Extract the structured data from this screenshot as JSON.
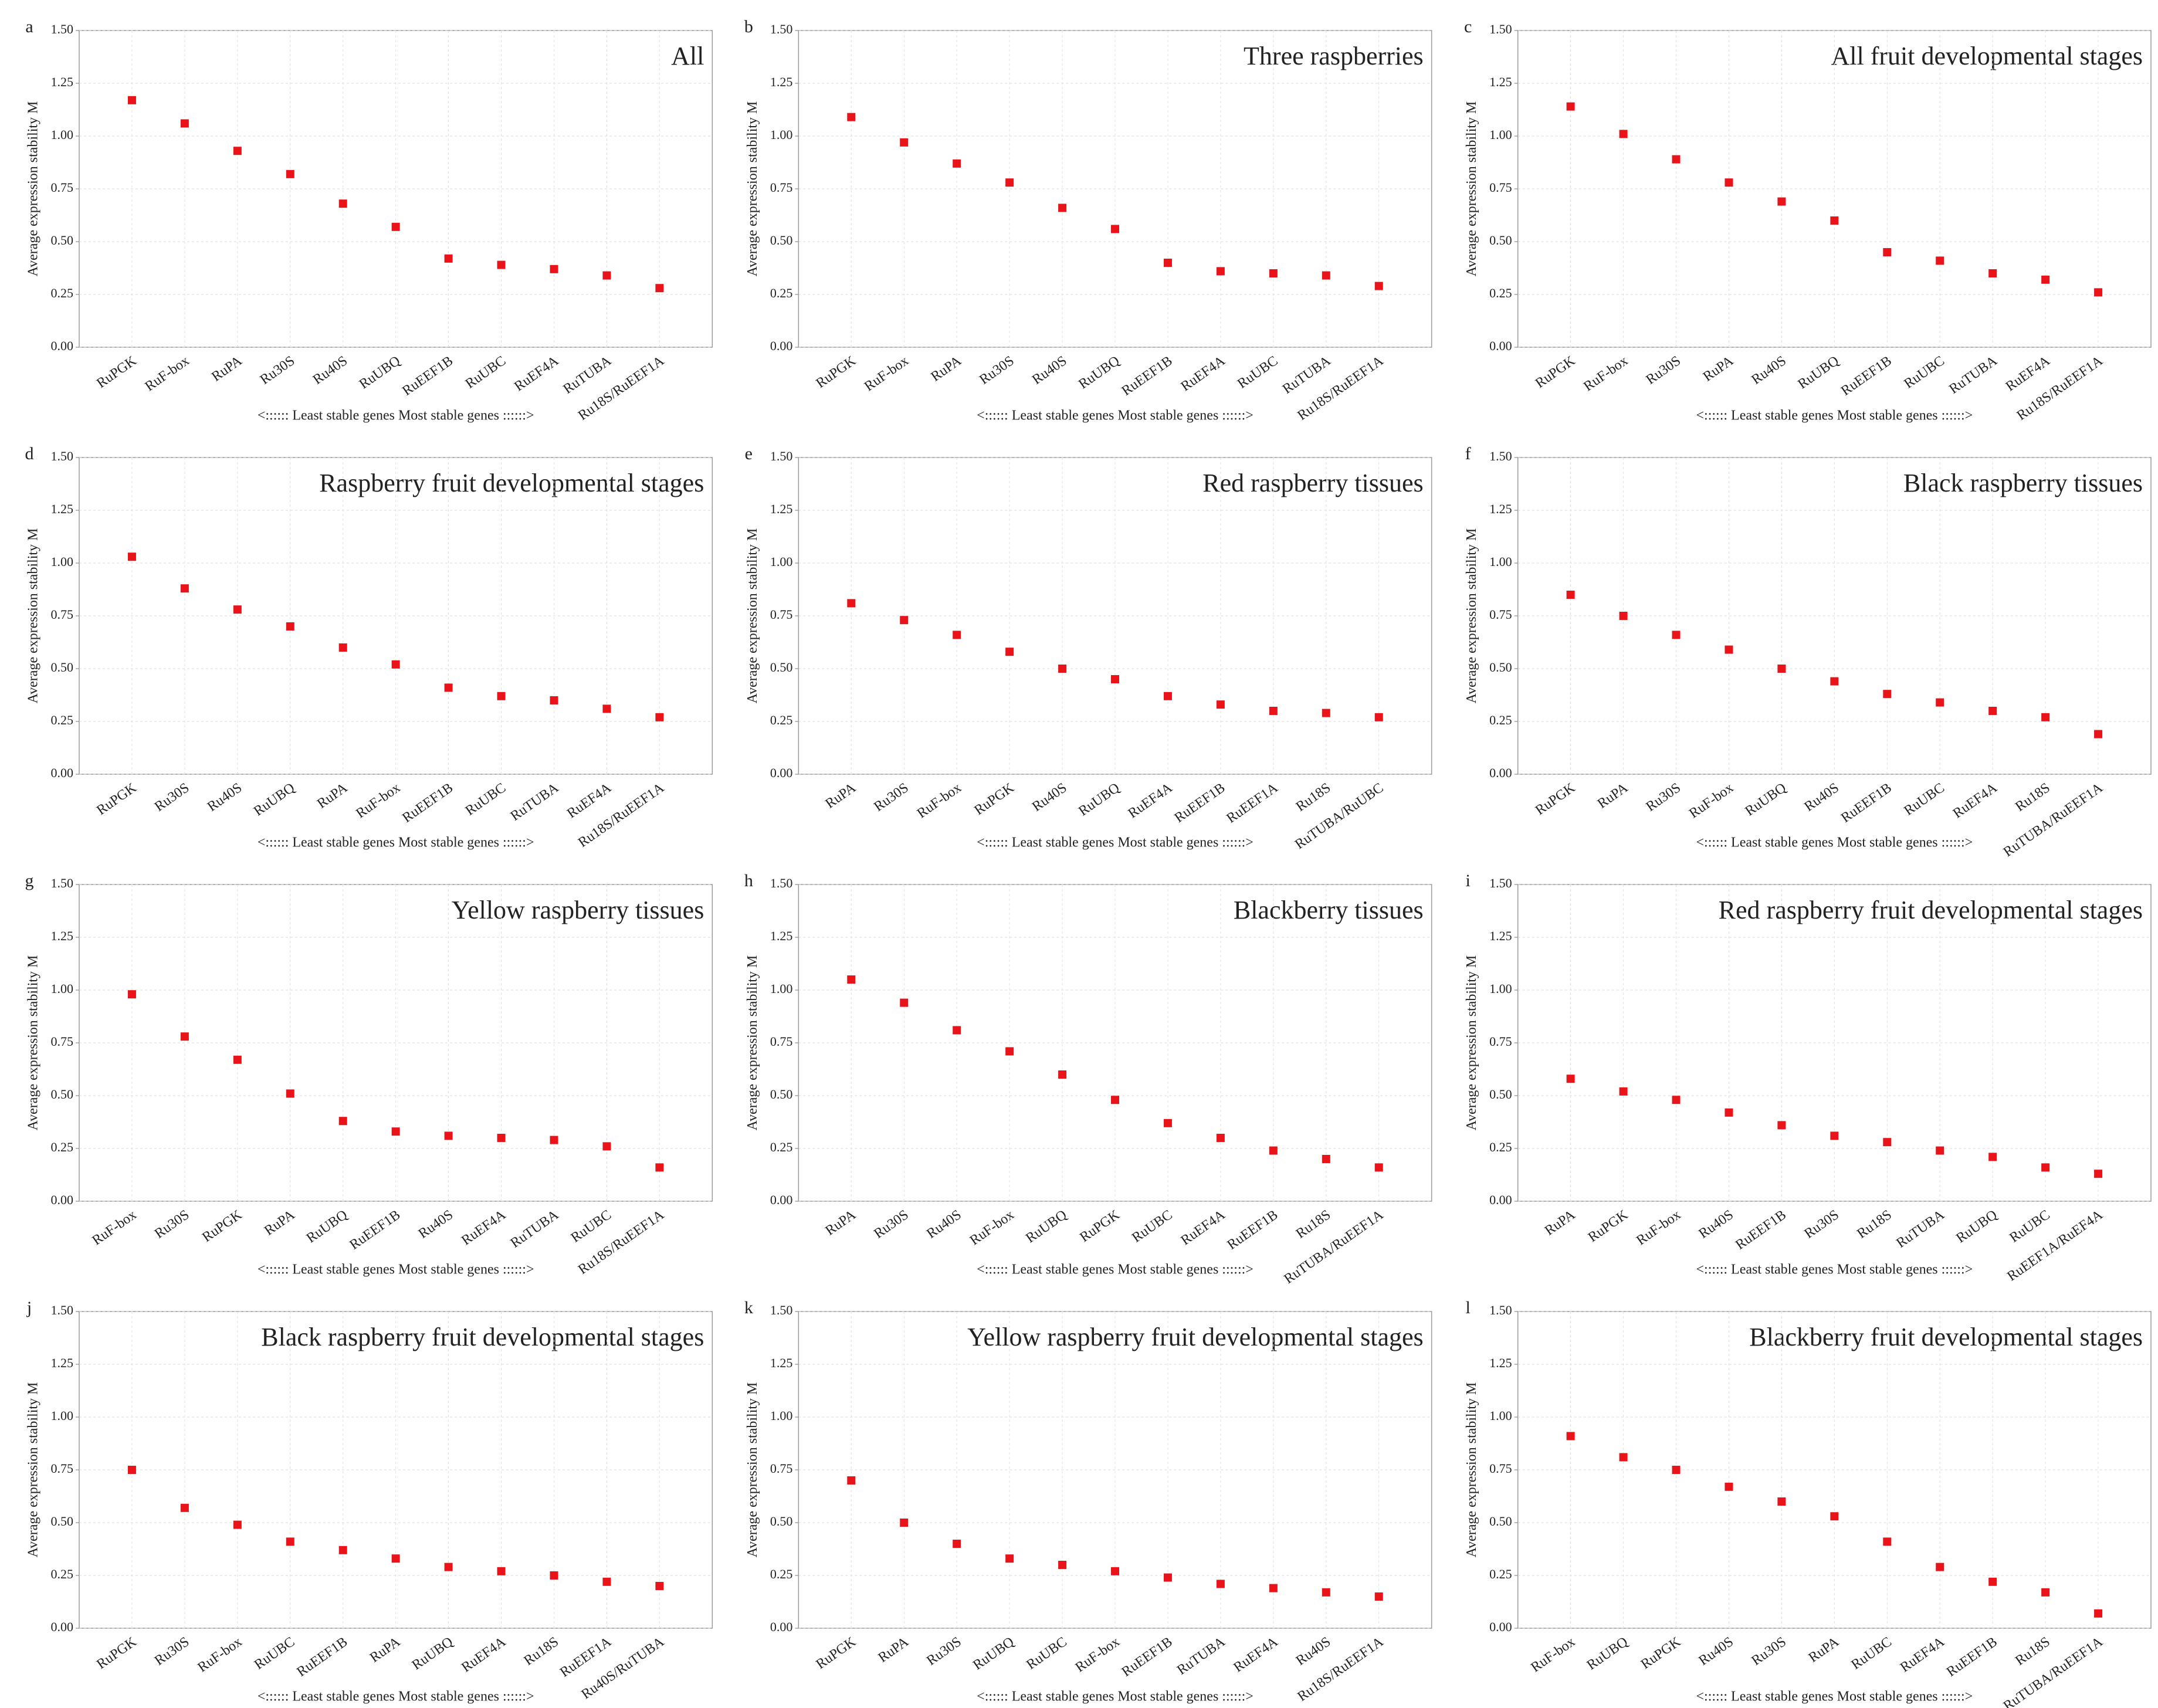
{
  "chart_data": [
    {
      "type": "scatter",
      "panel_label": "a",
      "title": "All",
      "y_label": "Average expression stability M",
      "x_label": "<:::::: Least stable genes  Most stable genes ::::::>",
      "color": "#e8141a",
      "grid": true,
      "categories": [
        "RuPGK",
        "RuF-box",
        "RuPA",
        "Ru30S",
        "Ru40S",
        "RuUBQ",
        "RuEEF1B",
        "RuUBC",
        "RuEF4A",
        "RuTUBA",
        "Ru18S/RuEEF1A"
      ],
      "values": [
        1.17,
        1.06,
        0.93,
        0.82,
        0.68,
        0.57,
        0.42,
        0.39,
        0.37,
        0.34,
        0.28
      ],
      "ylim": [
        0,
        1.5
      ],
      "yticks": [
        {
          "value": 0,
          "label": "0.00"
        },
        {
          "value": 0.25,
          "label": "0.25"
        },
        {
          "value": 0.5,
          "label": "0.50"
        },
        {
          "value": 0.75,
          "label": "0.75"
        },
        {
          "value": 1,
          "label": "1.00"
        },
        {
          "value": 1.25,
          "label": "1.25"
        },
        {
          "value": 1.5,
          "label": "1.50"
        }
      ]
    },
    {
      "type": "scatter",
      "panel_label": "b",
      "title": "Three raspberries",
      "y_label": "Average expression stability M",
      "x_label": "<:::::: Least stable genes  Most stable genes ::::::>",
      "color": "#e8141a",
      "grid": true,
      "categories": [
        "RuPGK",
        "RuF-box",
        "RuPA",
        "Ru30S",
        "Ru40S",
        "RuUBQ",
        "RuEEF1B",
        "RuEF4A",
        "RuUBC",
        "RuTUBA",
        "Ru18S/RuEEF1A"
      ],
      "values": [
        1.09,
        0.97,
        0.87,
        0.78,
        0.66,
        0.56,
        0.4,
        0.36,
        0.35,
        0.34,
        0.29
      ],
      "ylim": [
        0,
        1.5
      ],
      "yticks": [
        {
          "value": 0,
          "label": "0.00"
        },
        {
          "value": 0.25,
          "label": "0.25"
        },
        {
          "value": 0.5,
          "label": "0.50"
        },
        {
          "value": 0.75,
          "label": "0.75"
        },
        {
          "value": 1,
          "label": "1.00"
        },
        {
          "value": 1.25,
          "label": "1.25"
        },
        {
          "value": 1.5,
          "label": "1.50"
        }
      ]
    },
    {
      "type": "scatter",
      "panel_label": "c",
      "title": "All fruit developmental stages",
      "y_label": "Average expression stability M",
      "x_label": "<:::::: Least stable genes  Most stable genes ::::::>",
      "color": "#e8141a",
      "grid": true,
      "categories": [
        "RuPGK",
        "RuF-box",
        "Ru30S",
        "RuPA",
        "Ru40S",
        "RuUBQ",
        "RuEEF1B",
        "RuUBC",
        "RuTUBA",
        "RuEF4A",
        "Ru18S/RuEEF1A"
      ],
      "values": [
        1.14,
        1.01,
        0.89,
        0.78,
        0.69,
        0.6,
        0.45,
        0.41,
        0.35,
        0.32,
        0.26
      ],
      "ylim": [
        0,
        1.5
      ],
      "yticks": [
        {
          "value": 0,
          "label": "0.00"
        },
        {
          "value": 0.25,
          "label": "0.25"
        },
        {
          "value": 0.5,
          "label": "0.50"
        },
        {
          "value": 0.75,
          "label": "0.75"
        },
        {
          "value": 1,
          "label": "1.00"
        },
        {
          "value": 1.25,
          "label": "1.25"
        },
        {
          "value": 1.5,
          "label": "1.50"
        }
      ]
    },
    {
      "type": "scatter",
      "panel_label": "d",
      "title": "Raspberry fruit developmental stages",
      "y_label": "Average expression stability M",
      "x_label": "<:::::: Least stable genes  Most stable genes ::::::>",
      "color": "#e8141a",
      "grid": true,
      "categories": [
        "RuPGK",
        "Ru30S",
        "Ru40S",
        "RuUBQ",
        "RuPA",
        "RuF-box",
        "RuEEF1B",
        "RuUBC",
        "RuTUBA",
        "RuEF4A",
        "Ru18S/RuEEF1A"
      ],
      "values": [
        1.03,
        0.88,
        0.78,
        0.7,
        0.6,
        0.52,
        0.41,
        0.37,
        0.35,
        0.31,
        0.27
      ],
      "ylim": [
        0,
        1.5
      ],
      "yticks": [
        {
          "value": 0,
          "label": "0.00"
        },
        {
          "value": 0.25,
          "label": "0.25"
        },
        {
          "value": 0.5,
          "label": "0.50"
        },
        {
          "value": 0.75,
          "label": "0.75"
        },
        {
          "value": 1,
          "label": "1.00"
        },
        {
          "value": 1.25,
          "label": "1.25"
        },
        {
          "value": 1.5,
          "label": "1.50"
        }
      ]
    },
    {
      "type": "scatter",
      "panel_label": "e",
      "title": "Red raspberry tissues",
      "y_label": "Average expression stability M",
      "x_label": "<:::::: Least stable genes  Most stable genes ::::::>",
      "color": "#e8141a",
      "grid": true,
      "categories": [
        "RuPA",
        "Ru30S",
        "RuF-box",
        "RuPGK",
        "Ru40S",
        "RuUBQ",
        "RuEF4A",
        "RuEEF1B",
        "RuEEF1A",
        "Ru18S",
        "RuTUBA/RuUBC"
      ],
      "values": [
        0.81,
        0.73,
        0.66,
        0.58,
        0.5,
        0.45,
        0.37,
        0.33,
        0.3,
        0.29,
        0.27
      ],
      "ylim": [
        0,
        1.5
      ],
      "yticks": [
        {
          "value": 0,
          "label": "0.00"
        },
        {
          "value": 0.25,
          "label": "0.25"
        },
        {
          "value": 0.5,
          "label": "0.50"
        },
        {
          "value": 0.75,
          "label": "0.75"
        },
        {
          "value": 1,
          "label": "1.00"
        },
        {
          "value": 1.25,
          "label": "1.25"
        },
        {
          "value": 1.5,
          "label": "1.50"
        }
      ]
    },
    {
      "type": "scatter",
      "panel_label": "f",
      "title": "Black raspberry tissues",
      "y_label": "Average expression stability M",
      "x_label": "<:::::: Least stable genes  Most stable genes ::::::>",
      "color": "#e8141a",
      "grid": true,
      "categories": [
        "RuPGK",
        "RuPA",
        "Ru30S",
        "RuF-box",
        "RuUBQ",
        "Ru40S",
        "RuEEF1B",
        "RuUBC",
        "RuEF4A",
        "Ru18S",
        "RuTUBA/RuEEF1A"
      ],
      "values": [
        0.85,
        0.75,
        0.66,
        0.59,
        0.5,
        0.44,
        0.38,
        0.34,
        0.3,
        0.27,
        0.19
      ],
      "ylim": [
        0,
        1.5
      ],
      "yticks": [
        {
          "value": 0,
          "label": "0.00"
        },
        {
          "value": 0.25,
          "label": "0.25"
        },
        {
          "value": 0.5,
          "label": "0.50"
        },
        {
          "value": 0.75,
          "label": "0.75"
        },
        {
          "value": 1,
          "label": "1.00"
        },
        {
          "value": 1.25,
          "label": "1.25"
        },
        {
          "value": 1.5,
          "label": "1.50"
        }
      ]
    },
    {
      "type": "scatter",
      "panel_label": "g",
      "title": "Yellow raspberry tissues",
      "y_label": "Average expression stability M",
      "x_label": "<:::::: Least stable genes  Most stable genes ::::::>",
      "color": "#e8141a",
      "grid": true,
      "categories": [
        "RuF-box",
        "Ru30S",
        "RuPGK",
        "RuPA",
        "RuUBQ",
        "RuEEF1B",
        "Ru40S",
        "RuEF4A",
        "RuTUBA",
        "RuUBC",
        "Ru18S/RuEEF1A"
      ],
      "values": [
        0.98,
        0.78,
        0.67,
        0.51,
        0.38,
        0.33,
        0.31,
        0.3,
        0.29,
        0.26,
        0.16
      ],
      "ylim": [
        0,
        1.5
      ],
      "yticks": [
        {
          "value": 0,
          "label": "0.00"
        },
        {
          "value": 0.25,
          "label": "0.25"
        },
        {
          "value": 0.5,
          "label": "0.50"
        },
        {
          "value": 0.75,
          "label": "0.75"
        },
        {
          "value": 1,
          "label": "1.00"
        },
        {
          "value": 1.25,
          "label": "1.25"
        },
        {
          "value": 1.5,
          "label": "1.50"
        }
      ]
    },
    {
      "type": "scatter",
      "panel_label": "h",
      "title": "Blackberry tissues",
      "y_label": "Average expression stability M",
      "x_label": "<:::::: Least stable genes  Most stable genes ::::::>",
      "color": "#e8141a",
      "grid": true,
      "categories": [
        "RuPA",
        "Ru30S",
        "Ru40S",
        "RuF-box",
        "RuUBQ",
        "RuPGK",
        "RuUBC",
        "RuEF4A",
        "RuEEF1B",
        "Ru18S",
        "RuTUBA/RuEEF1A"
      ],
      "values": [
        1.05,
        0.94,
        0.81,
        0.71,
        0.6,
        0.48,
        0.37,
        0.3,
        0.24,
        0.2,
        0.16
      ],
      "ylim": [
        0,
        1.5
      ],
      "yticks": [
        {
          "value": 0,
          "label": "0.00"
        },
        {
          "value": 0.25,
          "label": "0.25"
        },
        {
          "value": 0.5,
          "label": "0.50"
        },
        {
          "value": 0.75,
          "label": "0.75"
        },
        {
          "value": 1,
          "label": "1.00"
        },
        {
          "value": 1.25,
          "label": "1.25"
        },
        {
          "value": 1.5,
          "label": "1.50"
        }
      ]
    },
    {
      "type": "scatter",
      "panel_label": "i",
      "title": "Red raspberry fruit developmental stages",
      "y_label": "Average expression stability M",
      "x_label": "<:::::: Least stable genes  Most stable genes ::::::>",
      "color": "#e8141a",
      "grid": true,
      "categories": [
        "RuPA",
        "RuPGK",
        "RuF-box",
        "Ru40S",
        "RuEEF1B",
        "Ru30S",
        "Ru18S",
        "RuTUBA",
        "RuUBQ",
        "RuUBC",
        "RuEEF1A/RuEF4A"
      ],
      "values": [
        0.58,
        0.52,
        0.48,
        0.42,
        0.36,
        0.31,
        0.28,
        0.24,
        0.21,
        0.16,
        0.13
      ],
      "ylim": [
        0,
        1.5
      ],
      "yticks": [
        {
          "value": 0,
          "label": "0.00"
        },
        {
          "value": 0.25,
          "label": "0.25"
        },
        {
          "value": 0.5,
          "label": "0.50"
        },
        {
          "value": 0.75,
          "label": "0.75"
        },
        {
          "value": 1,
          "label": "1.00"
        },
        {
          "value": 1.25,
          "label": "1.25"
        },
        {
          "value": 1.5,
          "label": "1.50"
        }
      ]
    },
    {
      "type": "scatter",
      "panel_label": "j",
      "title": "Black raspberry fruit developmental stages",
      "y_label": "Average expression stability M",
      "x_label": "<:::::: Least stable genes  Most stable genes ::::::>",
      "color": "#e8141a",
      "grid": true,
      "categories": [
        "RuPGK",
        "Ru30S",
        "RuF-box",
        "RuUBC",
        "RuEEF1B",
        "RuPA",
        "RuUBQ",
        "RuEF4A",
        "Ru18S",
        "RuEEF1A",
        "Ru40S/RuTUBA"
      ],
      "values": [
        0.75,
        0.57,
        0.49,
        0.41,
        0.37,
        0.33,
        0.29,
        0.27,
        0.25,
        0.22,
        0.2
      ],
      "ylim": [
        0,
        1.5
      ],
      "yticks": [
        {
          "value": 0,
          "label": "0.00"
        },
        {
          "value": 0.25,
          "label": "0.25"
        },
        {
          "value": 0.5,
          "label": "0.50"
        },
        {
          "value": 0.75,
          "label": "0.75"
        },
        {
          "value": 1,
          "label": "1.00"
        },
        {
          "value": 1.25,
          "label": "1.25"
        },
        {
          "value": 1.5,
          "label": "1.50"
        }
      ]
    },
    {
      "type": "scatter",
      "panel_label": "k",
      "title": "Yellow raspberry fruit developmental stages",
      "y_label": "Average expression stability M",
      "x_label": "<:::::: Least stable genes  Most stable genes ::::::>",
      "color": "#e8141a",
      "grid": true,
      "categories": [
        "RuPGK",
        "RuPA",
        "Ru30S",
        "RuUBQ",
        "RuUBC",
        "RuF-box",
        "RuEEF1B",
        "RuTUBA",
        "RuEF4A",
        "Ru40S",
        "Ru18S/RuEEF1A"
      ],
      "values": [
        0.7,
        0.5,
        0.4,
        0.33,
        0.3,
        0.27,
        0.24,
        0.21,
        0.19,
        0.17,
        0.15
      ],
      "ylim": [
        0,
        1.5
      ],
      "yticks": [
        {
          "value": 0,
          "label": "0.00"
        },
        {
          "value": 0.25,
          "label": "0.25"
        },
        {
          "value": 0.5,
          "label": "0.50"
        },
        {
          "value": 0.75,
          "label": "0.75"
        },
        {
          "value": 1,
          "label": "1.00"
        },
        {
          "value": 1.25,
          "label": "1.25"
        },
        {
          "value": 1.5,
          "label": "1.50"
        }
      ]
    },
    {
      "type": "scatter",
      "panel_label": "l",
      "title": "Blackberry fruit developmental stages",
      "y_label": "Average expression stability M",
      "x_label": "<:::::: Least stable genes  Most stable genes ::::::>",
      "color": "#e8141a",
      "grid": true,
      "categories": [
        "RuF-box",
        "RuUBQ",
        "RuPGK",
        "Ru40S",
        "Ru30S",
        "RuPA",
        "RuUBC",
        "RuEF4A",
        "RuEEF1B",
        "Ru18S",
        "RuTUBA/RuEEF1A"
      ],
      "values": [
        0.91,
        0.81,
        0.75,
        0.67,
        0.6,
        0.53,
        0.41,
        0.29,
        0.22,
        0.17,
        0.07
      ],
      "ylim": [
        0,
        1.5
      ],
      "yticks": [
        {
          "value": 0,
          "label": "0.00"
        },
        {
          "value": 0.25,
          "label": "0.25"
        },
        {
          "value": 0.5,
          "label": "0.50"
        },
        {
          "value": 0.75,
          "label": "0.75"
        },
        {
          "value": 1,
          "label": "1.00"
        },
        {
          "value": 1.25,
          "label": "1.25"
        },
        {
          "value": 1.5,
          "label": "1.50"
        }
      ]
    }
  ]
}
